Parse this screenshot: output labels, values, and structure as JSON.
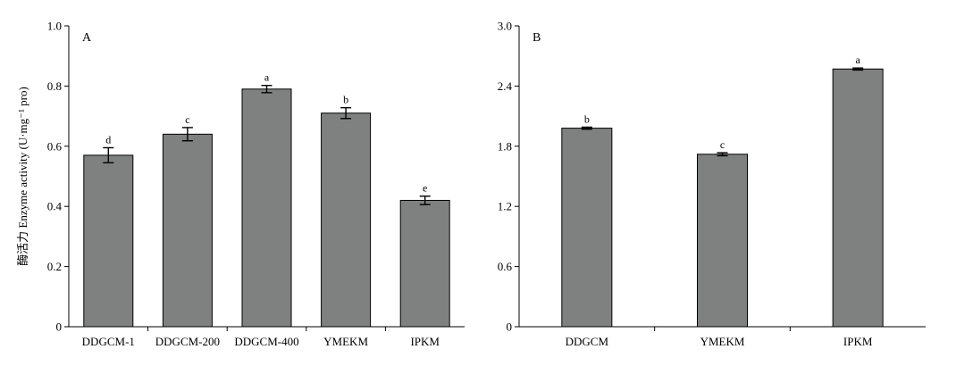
{
  "chart_data": [
    {
      "type": "bar",
      "panel_label": "A",
      "categories": [
        "DDGCM-1",
        "DDGCM-200",
        "DDGCM-400",
        "YMEKM",
        "IPKM"
      ],
      "values": [
        0.57,
        0.64,
        0.79,
        0.71,
        0.42
      ],
      "errors": [
        0.025,
        0.022,
        0.012,
        0.018,
        0.014
      ],
      "significance": [
        "d",
        "c",
        "a",
        "b",
        "e"
      ],
      "ylabel": "酶活力 Enzyme activity (U·mg⁻¹ pro)",
      "ylim": [
        0,
        1.0
      ],
      "yticks": [
        0,
        0.2,
        0.4,
        0.6,
        0.8,
        1.0
      ],
      "ytick_labels": [
        "0",
        "0.2",
        "0.4",
        "0.6",
        "0.8",
        "1.0"
      ],
      "bar_color": "#7f8180",
      "grid": false
    },
    {
      "type": "bar",
      "panel_label": "B",
      "categories": [
        "DDGCM",
        "YMEKM",
        "IPKM"
      ],
      "values": [
        1.98,
        1.72,
        2.57
      ],
      "errors": [
        0.01,
        0.015,
        0.01
      ],
      "significance": [
        "b",
        "c",
        "a"
      ],
      "ylabel": "",
      "ylim": [
        0,
        3.0
      ],
      "yticks": [
        0,
        0.6,
        1.2,
        1.8,
        2.4,
        3.0
      ],
      "ytick_labels": [
        "0",
        "0.6",
        "1.2",
        "1.8",
        "2.4",
        "3.0"
      ],
      "bar_color": "#7f8180",
      "grid": false
    }
  ]
}
